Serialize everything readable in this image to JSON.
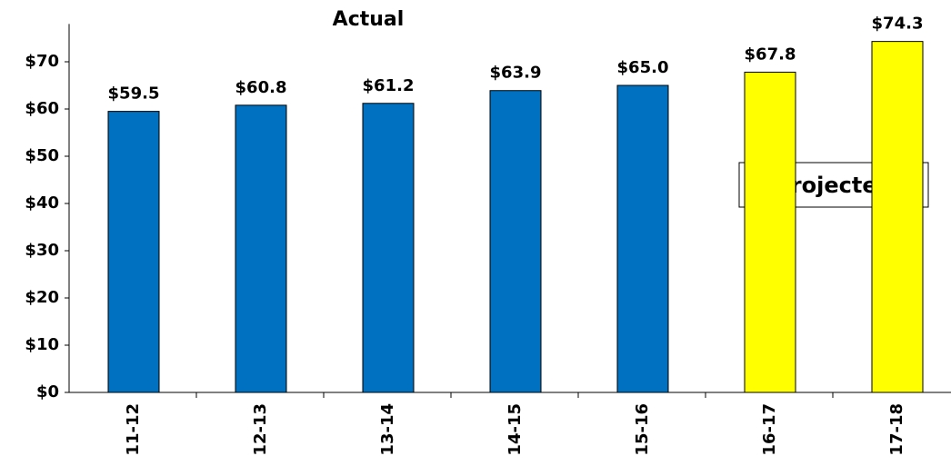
{
  "chart_data": {
    "type": "bar",
    "categories": [
      "11-12",
      "12-13",
      "13-14",
      "14-15",
      "15-16",
      "16-17",
      "17-18"
    ],
    "values": [
      59.5,
      60.8,
      61.2,
      63.9,
      65.0,
      67.8,
      74.3
    ],
    "value_labels": [
      "$59.5",
      "$60.8",
      "$61.2",
      "$63.9",
      "$65.0",
      "$67.8",
      "$74.3"
    ],
    "colors": [
      "#0070c0",
      "#0070c0",
      "#0070c0",
      "#0070c0",
      "#0070c0",
      "#ffff00",
      "#ffff00"
    ],
    "annotations": [
      "Actual",
      "Projected"
    ],
    "ylim": [
      0,
      78
    ],
    "yticks": [
      {
        "value": 0,
        "label": "$0"
      },
      {
        "value": 10,
        "label": "$10"
      },
      {
        "value": 20,
        "label": "$20"
      },
      {
        "value": 30,
        "label": "$30"
      },
      {
        "value": 40,
        "label": "$40"
      },
      {
        "value": 50,
        "label": "$50"
      },
      {
        "value": 60,
        "label": "$60"
      },
      {
        "value": 70,
        "label": "$70"
      }
    ],
    "grid": false
  }
}
